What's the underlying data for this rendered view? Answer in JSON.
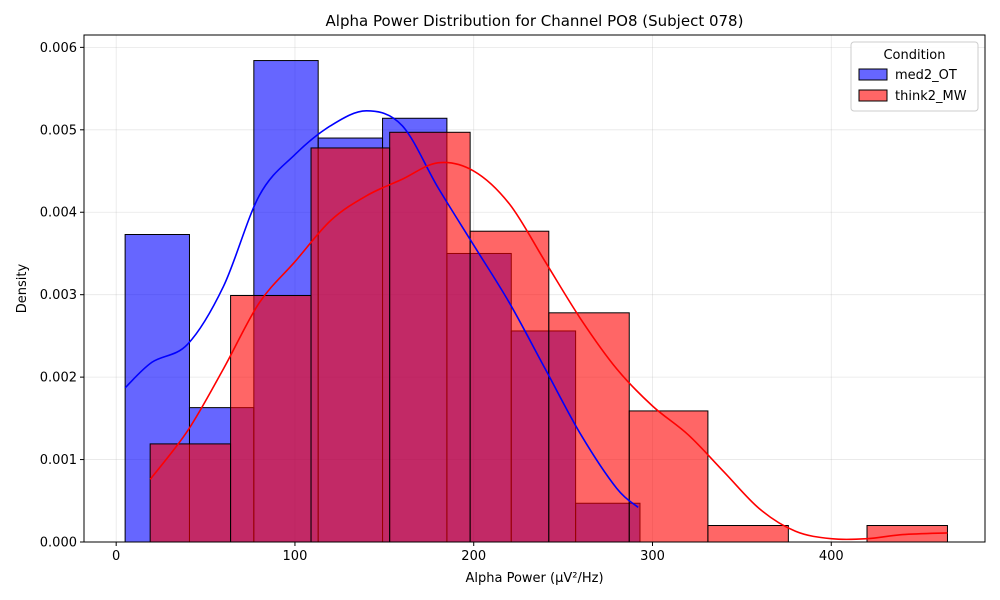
{
  "chart_data": {
    "type": "bar",
    "title": "Alpha Power Distribution for Channel PO8 (Subject 078)",
    "xlabel": "Alpha Power (μV²/Hz)",
    "ylabel": "Density",
    "xlim": [
      -18,
      486
    ],
    "ylim": [
      0,
      0.00615
    ],
    "xticks": [
      0,
      100,
      200,
      300,
      400
    ],
    "xtick_labels": [
      "0",
      "100",
      "200",
      "300",
      "400"
    ],
    "yticks": [
      0,
      0.001,
      0.002,
      0.003,
      0.004,
      0.005,
      0.006
    ],
    "ytick_labels": [
      "0.000",
      "0.001",
      "0.002",
      "0.003",
      "0.004",
      "0.005",
      "0.006"
    ],
    "grid": true,
    "legend": {
      "title": "Condition",
      "placement": "top-right"
    },
    "series": [
      {
        "name": "med2_OT",
        "color": "#0000ff",
        "bins": [
          {
            "x0": 5,
            "x1": 41,
            "density": 0.00373
          },
          {
            "x0": 41,
            "x1": 77,
            "density": 0.00163
          },
          {
            "x0": 77,
            "x1": 113,
            "density": 0.00584
          },
          {
            "x0": 113,
            "x1": 149,
            "density": 0.0049
          },
          {
            "x0": 149,
            "x1": 185,
            "density": 0.00514
          },
          {
            "x0": 185,
            "x1": 221,
            "density": 0.0035
          },
          {
            "x0": 221,
            "x1": 257,
            "density": 0.00256
          },
          {
            "x0": 257,
            "x1": 293,
            "density": 0.00047
          }
        ],
        "kde": {
          "x": [
            5,
            20,
            40,
            60,
            80,
            100,
            120,
            140,
            160,
            180,
            200,
            220,
            240,
            260,
            280,
            292
          ],
          "y": [
            0.00187,
            0.00218,
            0.0024,
            0.0031,
            0.0042,
            0.0047,
            0.00505,
            0.00523,
            0.00505,
            0.0043,
            0.0036,
            0.0029,
            0.0021,
            0.0013,
            0.00065,
            0.00042
          ]
        }
      },
      {
        "name": "think2_MW",
        "color": "#ff0000",
        "bins": [
          {
            "x0": 19,
            "x1": 64,
            "density": 0.00119
          },
          {
            "x0": 64,
            "x1": 109,
            "density": 0.00299
          },
          {
            "x0": 109,
            "x1": 153,
            "density": 0.00478
          },
          {
            "x0": 153,
            "x1": 198,
            "density": 0.00497
          },
          {
            "x0": 198,
            "x1": 242,
            "density": 0.00377
          },
          {
            "x0": 242,
            "x1": 287,
            "density": 0.00278
          },
          {
            "x0": 287,
            "x1": 331,
            "density": 0.00159
          },
          {
            "x0": 331,
            "x1": 376,
            "density": 0.0002
          },
          {
            "x0": 376,
            "x1": 420,
            "density": 0
          },
          {
            "x0": 420,
            "x1": 465,
            "density": 0.0002
          }
        ],
        "kde": {
          "x": [
            19,
            40,
            60,
            80,
            100,
            120,
            140,
            160,
            180,
            200,
            220,
            240,
            260,
            280,
            300,
            320,
            340,
            360,
            380,
            400,
            420,
            440,
            465
          ],
          "y": [
            0.00076,
            0.00135,
            0.0021,
            0.0029,
            0.0034,
            0.0039,
            0.0042,
            0.0044,
            0.0046,
            0.0045,
            0.0041,
            0.0034,
            0.0027,
            0.0021,
            0.00165,
            0.0013,
            0.00085,
            0.0004,
            0.00013,
            4e-05,
            4e-05,
            9e-05,
            0.00011
          ]
        }
      }
    ]
  }
}
